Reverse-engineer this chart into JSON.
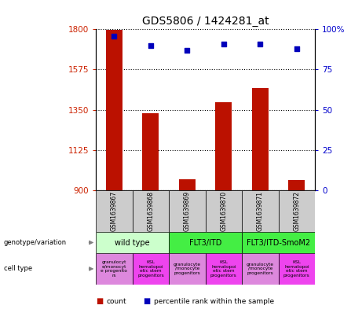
{
  "title": "GDS5806 / 1424281_at",
  "samples": [
    "GSM1639867",
    "GSM1639868",
    "GSM1639869",
    "GSM1639870",
    "GSM1639871",
    "GSM1639872"
  ],
  "bar_values": [
    1795,
    1330,
    960,
    1390,
    1470,
    955
  ],
  "scatter_values": [
    96,
    90,
    87,
    91,
    91,
    88
  ],
  "ylim_left": [
    900,
    1800
  ],
  "ylim_right": [
    0,
    100
  ],
  "yticks_left": [
    900,
    1125,
    1350,
    1575,
    1800
  ],
  "yticks_right": [
    0,
    25,
    50,
    75,
    100
  ],
  "bar_color": "#bb1100",
  "scatter_color": "#0000bb",
  "geno_groups": [
    {
      "label": "wild type",
      "start": 0,
      "end": 2,
      "color": "#ccffcc"
    },
    {
      "label": "FLT3/ITD",
      "start": 2,
      "end": 4,
      "color": "#44ee44"
    },
    {
      "label": "FLT3/ITD-SmoM2",
      "start": 4,
      "end": 6,
      "color": "#44ee44"
    }
  ],
  "cell_colors": [
    "#dd88dd",
    "#ee44ee",
    "#dd88dd",
    "#ee44ee",
    "#dd88dd",
    "#ee44ee"
  ],
  "cell_labels": [
    "granulocyt\ne/monocyt\ne progenito\nrs",
    "KSL\nhematopoi\netic stem\nprogenitors",
    "granulocyte\n/monocyte\nprogenitors",
    "KSL\nhematopoi\netic stem\nprogenitors",
    "granulocyte\n/monocyte\nprogenitors",
    "KSL\nhematopoi\netic stem\nprogenitors"
  ],
  "sample_box_color": "#cccccc",
  "left_label_color": "#cc2200",
  "right_label_color": "#0000cc",
  "legend_count_color": "#bb1100",
  "legend_rank_color": "#0000bb"
}
